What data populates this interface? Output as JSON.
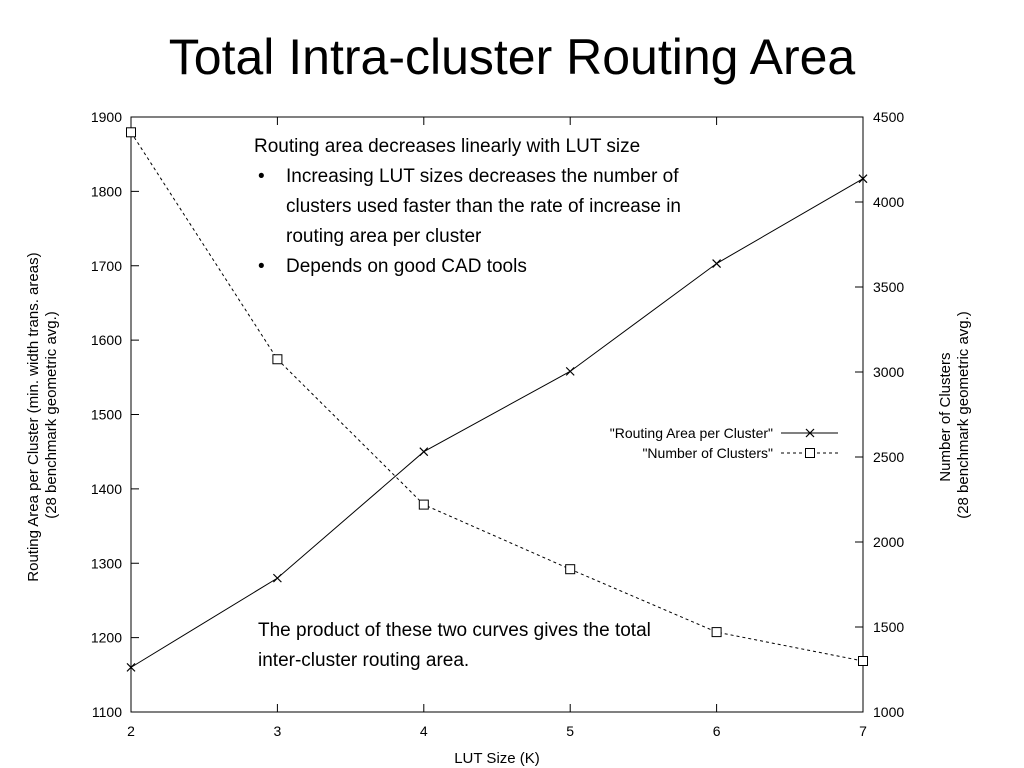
{
  "slide": {
    "title": "Total Intra-cluster Routing Area"
  },
  "notes": {
    "top": {
      "heading": "Routing area decreases linearly with LUT size",
      "bullets": [
        "Increasing LUT sizes decreases the number of clusters used faster than the rate of increase in routing area per cluster",
        "Depends on good CAD tools"
      ]
    },
    "bottom": " The product of these two curves gives the total inter-cluster routing area."
  },
  "chart_data": {
    "type": "line",
    "title": "",
    "xlabel": "LUT Size (K)",
    "ylabel_left_lines": [
      "Routing Area per Cluster (min. width trans. areas)",
      "(28 benchmark geometric avg.)"
    ],
    "ylabel_right_lines": [
      "Number of Clusters",
      "(28 benchmark geometric avg.)"
    ],
    "x": [
      2,
      3,
      4,
      5,
      6,
      7
    ],
    "xlim": [
      2,
      7
    ],
    "x_ticks": [
      2,
      3,
      4,
      5,
      6,
      7
    ],
    "ylim_left": [
      1100,
      1900
    ],
    "y_ticks_left": [
      1100,
      1200,
      1300,
      1400,
      1500,
      1600,
      1700,
      1800,
      1900
    ],
    "ylim_right": [
      1000,
      4500
    ],
    "y_ticks_right": [
      1000,
      1500,
      2000,
      2500,
      3000,
      3500,
      4000,
      4500
    ],
    "grid": false,
    "legend_position": "middle-right",
    "series": [
      {
        "name": "\"Routing Area per Cluster\"",
        "axis": "left",
        "marker": "x",
        "line_style": "solid",
        "values": [
          1160,
          1280,
          1450,
          1558,
          1703,
          1817
        ]
      },
      {
        "name": "\"Number of Clusters\"",
        "axis": "right",
        "marker": "square",
        "line_style": "dashed",
        "values": [
          4410,
          3075,
          2220,
          1840,
          1470,
          1300
        ]
      }
    ]
  }
}
